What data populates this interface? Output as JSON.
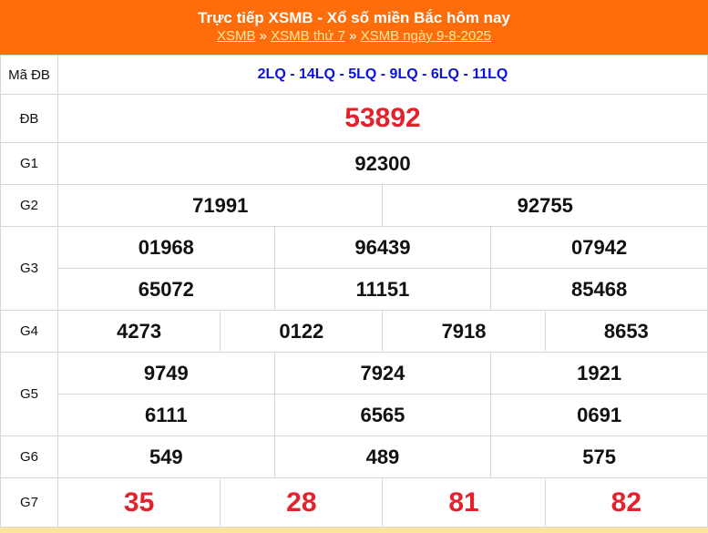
{
  "header": {
    "title": "Trực tiếp XSMB - Xổ số miền Bắc hôm nay",
    "breadcrumb": [
      "XSMB",
      "XSMB thứ 7",
      "XSMB ngày 9-8-2025"
    ],
    "separator": "»"
  },
  "colors": {
    "header_bg": "#ff6c0a",
    "code": "#0b14d6",
    "highlight": "#e3222b"
  },
  "rows": {
    "ma_db": {
      "label": "Mã ĐB",
      "value": "2LQ - 14LQ - 5LQ - 9LQ - 6LQ - 11LQ"
    },
    "db": {
      "label": "ĐB",
      "values": [
        "53892"
      ]
    },
    "g1": {
      "label": "G1",
      "values": [
        "92300"
      ]
    },
    "g2": {
      "label": "G2",
      "values": [
        "71991",
        "92755"
      ]
    },
    "g3": {
      "label": "G3",
      "values": [
        "01968",
        "96439",
        "07942",
        "65072",
        "11151",
        "85468"
      ]
    },
    "g4": {
      "label": "G4",
      "values": [
        "4273",
        "0122",
        "7918",
        "8653"
      ]
    },
    "g5": {
      "label": "G5",
      "values": [
        "9749",
        "7924",
        "1921",
        "6111",
        "6565",
        "0691"
      ]
    },
    "g6": {
      "label": "G6",
      "values": [
        "549",
        "489",
        "575"
      ]
    },
    "g7": {
      "label": "G7",
      "values": [
        "35",
        "28",
        "81",
        "82"
      ]
    }
  }
}
